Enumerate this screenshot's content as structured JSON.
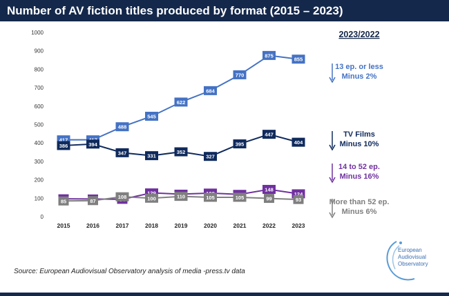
{
  "title": "Number of AV fiction titles produced by format (2015 – 2023)",
  "source": "Source: European Audiovisual Observatory analysis of media  -press.tv data",
  "logo_text": [
    "European",
    "Audiovisual",
    "Observatory"
  ],
  "chart_data": {
    "type": "line",
    "x": [
      "2015",
      "2016",
      "2017",
      "2018",
      "2019",
      "2020",
      "2021",
      "2022",
      "2023"
    ],
    "ylim": [
      0,
      1000
    ],
    "yticks": [
      0,
      100,
      200,
      300,
      400,
      500,
      600,
      700,
      800,
      900,
      1000
    ],
    "grid": false,
    "legend_placement": "right",
    "comparison_title": "2023/2022",
    "series": [
      {
        "name": "13 ep. or less",
        "change": "Minus 2%",
        "color": "#4472c4",
        "values": [
          417,
          417,
          488,
          545,
          622,
          684,
          770,
          875,
          855
        ]
      },
      {
        "name": "TV Films",
        "change": "Minus 10%",
        "color": "#0f2a5c",
        "values": [
          386,
          394,
          347,
          331,
          352,
          327,
          395,
          447,
          404
        ]
      },
      {
        "name": "14 to 52 ep.",
        "change": "Minus 16%",
        "color": "#7030a0",
        "values": [
          97,
          96,
          94,
          129,
          122,
          128,
          121,
          148,
          124
        ]
      },
      {
        "name": "More than 52 ep.",
        "change": "Minus 6%",
        "color": "#7f7f7f",
        "values": [
          85,
          87,
          108,
          100,
          110,
          105,
          105,
          99,
          93
        ]
      }
    ]
  }
}
